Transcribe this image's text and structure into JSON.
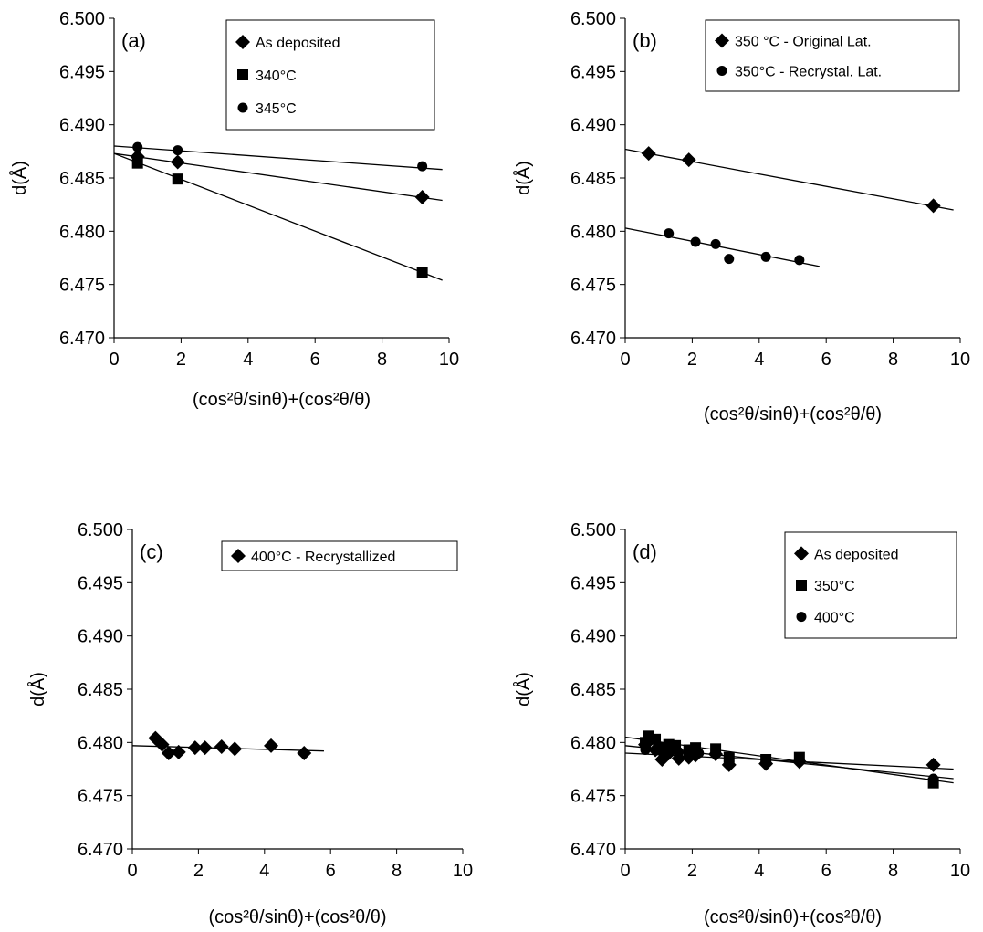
{
  "chart_data": [
    {
      "type": "scatter",
      "panel_label": "(a)",
      "xlabel": "(cos²θ/sinθ)+(cos²θ/θ)",
      "ylabel": "d(Å)",
      "xlim": [
        0,
        10
      ],
      "ylim": [
        6.47,
        6.5
      ],
      "x_ticks": [
        "0",
        "2",
        "4",
        "6",
        "8",
        "10"
      ],
      "y_ticks": [
        "6.470",
        "6.475",
        "6.480",
        "6.485",
        "6.490",
        "6.495",
        "6.500"
      ],
      "legend_position": "top-right",
      "series": [
        {
          "name": "As deposited",
          "marker": "diamond",
          "points": [
            [
              0.7,
              6.487
            ],
            [
              1.9,
              6.4865
            ],
            [
              9.2,
              6.4832
            ]
          ]
        },
        {
          "name": "340°C",
          "marker": "square",
          "points": [
            [
              0.7,
              6.4864
            ],
            [
              1.9,
              6.4849
            ],
            [
              9.2,
              6.4761
            ]
          ]
        },
        {
          "name": "345°C",
          "marker": "circle",
          "points": [
            [
              0.7,
              6.4879
            ],
            [
              1.9,
              6.4876
            ],
            [
              9.2,
              6.4861
            ]
          ]
        }
      ],
      "fit_lines": [
        {
          "series": "As deposited",
          "x": [
            0,
            9.8
          ],
          "y": [
            6.4873,
            6.4829
          ]
        },
        {
          "series": "340°C",
          "x": [
            0,
            9.8
          ],
          "y": [
            6.4873,
            6.4754
          ]
        },
        {
          "series": "345°C",
          "x": [
            0,
            9.8
          ],
          "y": [
            6.488,
            6.4858
          ]
        }
      ]
    },
    {
      "type": "scatter",
      "panel_label": "(b)",
      "xlabel": "(cos²θ/sinθ)+(cos²θ/θ)",
      "ylabel": "d(Å)",
      "xlim": [
        0,
        10
      ],
      "ylim": [
        6.47,
        6.5
      ],
      "x_ticks": [
        "0",
        "2",
        "4",
        "6",
        "8",
        "10"
      ],
      "y_ticks": [
        "6.470",
        "6.475",
        "6.480",
        "6.485",
        "6.490",
        "6.495",
        "6.500"
      ],
      "legend_position": "top-right",
      "series": [
        {
          "name": "350 °C - Original Lat.",
          "marker": "diamond",
          "points": [
            [
              0.7,
              6.4873
            ],
            [
              1.9,
              6.4867
            ],
            [
              9.2,
              6.4824
            ]
          ]
        },
        {
          "name": "350°C - Recrystal. Lat.",
          "marker": "circle",
          "points": [
            [
              1.3,
              6.4798
            ],
            [
              2.1,
              6.479
            ],
            [
              2.7,
              6.4788
            ],
            [
              3.1,
              6.4774
            ],
            [
              4.2,
              6.4776
            ],
            [
              5.2,
              6.4773
            ]
          ]
        }
      ],
      "fit_lines": [
        {
          "series": "350 °C - Original Lat.",
          "x": [
            0,
            9.8
          ],
          "y": [
            6.4877,
            6.482
          ]
        },
        {
          "series": "350°C - Recrystal. Lat.",
          "x": [
            0,
            5.8
          ],
          "y": [
            6.4803,
            6.4767
          ]
        }
      ]
    },
    {
      "type": "scatter",
      "panel_label": "(c)",
      "xlabel": "(cos²θ/sinθ)+(cos²θ/θ)",
      "ylabel": "d(Å)",
      "xlim": [
        0,
        10
      ],
      "ylim": [
        6.47,
        6.5
      ],
      "x_ticks": [
        "0",
        "2",
        "4",
        "6",
        "8",
        "10"
      ],
      "y_ticks": [
        "6.470",
        "6.475",
        "6.480",
        "6.485",
        "6.490",
        "6.495",
        "6.500"
      ],
      "legend_position": "top-right",
      "series": [
        {
          "name": "400°C - Recrystallized",
          "marker": "diamond",
          "points": [
            [
              0.7,
              6.4804
            ],
            [
              0.9,
              6.4798
            ],
            [
              1.1,
              6.479
            ],
            [
              1.4,
              6.4791
            ],
            [
              1.9,
              6.4795
            ],
            [
              2.2,
              6.4795
            ],
            [
              2.7,
              6.4796
            ],
            [
              3.1,
              6.4794
            ],
            [
              4.2,
              6.4797
            ],
            [
              5.2,
              6.479
            ]
          ]
        }
      ],
      "fit_lines": [
        {
          "series": "400°C - Recrystallized",
          "x": [
            0,
            5.8
          ],
          "y": [
            6.4797,
            6.4792
          ]
        }
      ]
    },
    {
      "type": "scatter",
      "panel_label": "(d)",
      "xlabel": "(cos²θ/sinθ)+(cos²θ/θ)",
      "ylabel": "d(Å)",
      "xlim": [
        0,
        10
      ],
      "ylim": [
        6.47,
        6.5
      ],
      "x_ticks": [
        "0",
        "2",
        "4",
        "6",
        "8",
        "10"
      ],
      "y_ticks": [
        "6.470",
        "6.475",
        "6.480",
        "6.485",
        "6.490",
        "6.495",
        "6.500"
      ],
      "legend_position": "top-right",
      "series": [
        {
          "name": "As deposited",
          "marker": "diamond",
          "points": [
            [
              0.6,
              6.4798
            ],
            [
              0.9,
              6.4793
            ],
            [
              1.1,
              6.4784
            ],
            [
              1.3,
              6.479
            ],
            [
              1.6,
              6.4785
            ],
            [
              1.9,
              6.4786
            ],
            [
              2.1,
              6.4788
            ],
            [
              2.7,
              6.4789
            ],
            [
              3.1,
              6.4779
            ],
            [
              4.2,
              6.478
            ],
            [
              5.2,
              6.4782
            ],
            [
              9.2,
              6.4779
            ]
          ]
        },
        {
          "name": "350°C",
          "marker": "square",
          "points": [
            [
              0.6,
              6.48
            ],
            [
              0.7,
              6.4806
            ],
            [
              0.9,
              6.4803
            ],
            [
              1.1,
              6.4795
            ],
            [
              1.3,
              6.4798
            ],
            [
              1.5,
              6.4797
            ],
            [
              1.9,
              6.4793
            ],
            [
              2.1,
              6.4795
            ],
            [
              2.7,
              6.4794
            ],
            [
              3.1,
              6.4786
            ],
            [
              4.2,
              6.4784
            ],
            [
              5.2,
              6.4786
            ],
            [
              9.2,
              6.4762
            ]
          ]
        },
        {
          "name": "400°C",
          "marker": "circle",
          "points": [
            [
              0.6,
              6.4793
            ],
            [
              1.1,
              6.4792
            ],
            [
              1.6,
              6.4791
            ],
            [
              2.2,
              6.479
            ],
            [
              3.1,
              6.4786
            ],
            [
              4.2,
              6.4783
            ],
            [
              5.2,
              6.4782
            ],
            [
              9.2,
              6.4766
            ]
          ]
        }
      ],
      "fit_lines": [
        {
          "series": "As deposited",
          "x": [
            0,
            9.8
          ],
          "y": [
            6.479,
            6.4775
          ]
        },
        {
          "series": "350°C",
          "x": [
            0,
            9.8
          ],
          "y": [
            6.4805,
            6.4762
          ]
        },
        {
          "series": "400°C",
          "x": [
            0,
            9.8
          ],
          "y": [
            6.4797,
            6.4766
          ]
        }
      ]
    }
  ]
}
